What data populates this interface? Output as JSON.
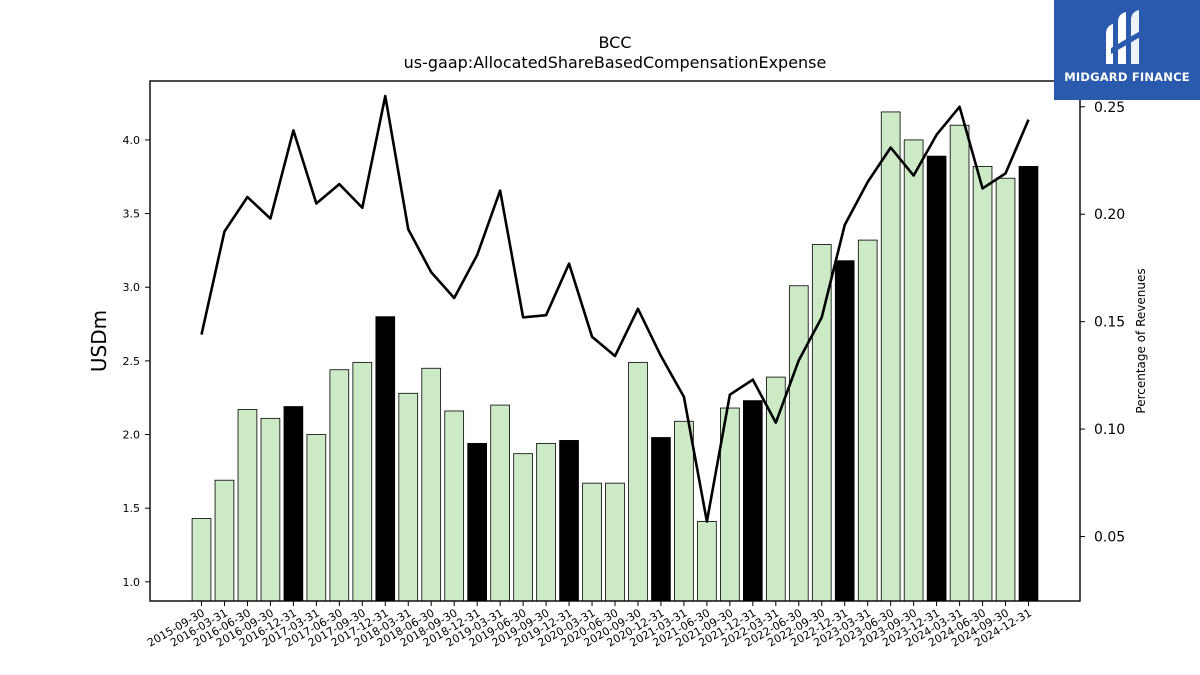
{
  "brand": {
    "name": "MIDGARD FINANCE",
    "bg_color": "#2a5aad"
  },
  "chart_data": {
    "type": "bar",
    "title": "BCC",
    "subtitle": "us-gaap:AllocatedShareBasedCompensationExpense",
    "ylabel": "USDm",
    "y2label": "Percentage of Revenues",
    "ylim": [
      0.87,
      4.4
    ],
    "y2lim": [
      0.02,
      0.262
    ],
    "yticks": [
      1.0,
      1.5,
      2.0,
      2.5,
      3.0,
      3.5,
      4.0
    ],
    "y2ticks": [
      0.05,
      0.1,
      0.15,
      0.2,
      0.25
    ],
    "colors": {
      "bar": "#cdeac6",
      "bar_highlight": "#000000",
      "line": "#000000"
    },
    "categories": [
      "2015-09-30",
      "2016-03-31",
      "2016-06-30",
      "2016-09-30",
      "2016-12-31",
      "2017-03-31",
      "2017-06-30",
      "2017-09-30",
      "2017-12-31",
      "2018-03-31",
      "2018-06-30",
      "2018-09-30",
      "2018-12-31",
      "2019-03-31",
      "2019-06-30",
      "2019-09-30",
      "2019-12-31",
      "2020-03-31",
      "2020-06-30",
      "2020-09-30",
      "2020-12-31",
      "2021-03-31",
      "2021-06-30",
      "2021-09-30",
      "2021-12-31",
      "2022-03-31",
      "2022-06-30",
      "2022-09-30",
      "2022-12-31",
      "2023-03-31",
      "2023-06-30",
      "2023-09-30",
      "2023-12-31",
      "2024-03-31",
      "2024-06-30",
      "2024-09-30",
      "2024-12-31"
    ],
    "values": [
      1.43,
      1.69,
      2.17,
      2.11,
      2.19,
      2.0,
      2.44,
      2.49,
      2.8,
      2.28,
      2.45,
      2.16,
      1.94,
      2.2,
      1.87,
      1.94,
      1.96,
      1.67,
      1.67,
      2.49,
      1.98,
      2.09,
      1.41,
      2.18,
      2.23,
      2.39,
      3.01,
      3.29,
      3.18,
      3.32,
      4.19,
      4.0,
      3.89,
      4.1,
      3.82,
      3.74,
      3.82
    ],
    "highlight": [
      false,
      false,
      false,
      false,
      true,
      false,
      false,
      false,
      true,
      false,
      false,
      false,
      true,
      false,
      false,
      false,
      true,
      false,
      false,
      false,
      true,
      false,
      false,
      false,
      true,
      false,
      false,
      false,
      true,
      false,
      false,
      false,
      true,
      false,
      false,
      false,
      true
    ],
    "line_values": [
      0.144,
      0.192,
      0.208,
      0.198,
      0.239,
      0.205,
      0.214,
      0.203,
      0.255,
      0.193,
      0.173,
      0.161,
      0.181,
      0.211,
      0.152,
      0.153,
      0.177,
      0.143,
      0.134,
      0.156,
      0.134,
      0.115,
      0.057,
      0.116,
      0.123,
      0.103,
      0.132,
      0.152,
      0.195,
      0.215,
      0.231,
      0.218,
      0.237,
      0.25,
      0.212,
      0.219,
      0.244
    ]
  }
}
